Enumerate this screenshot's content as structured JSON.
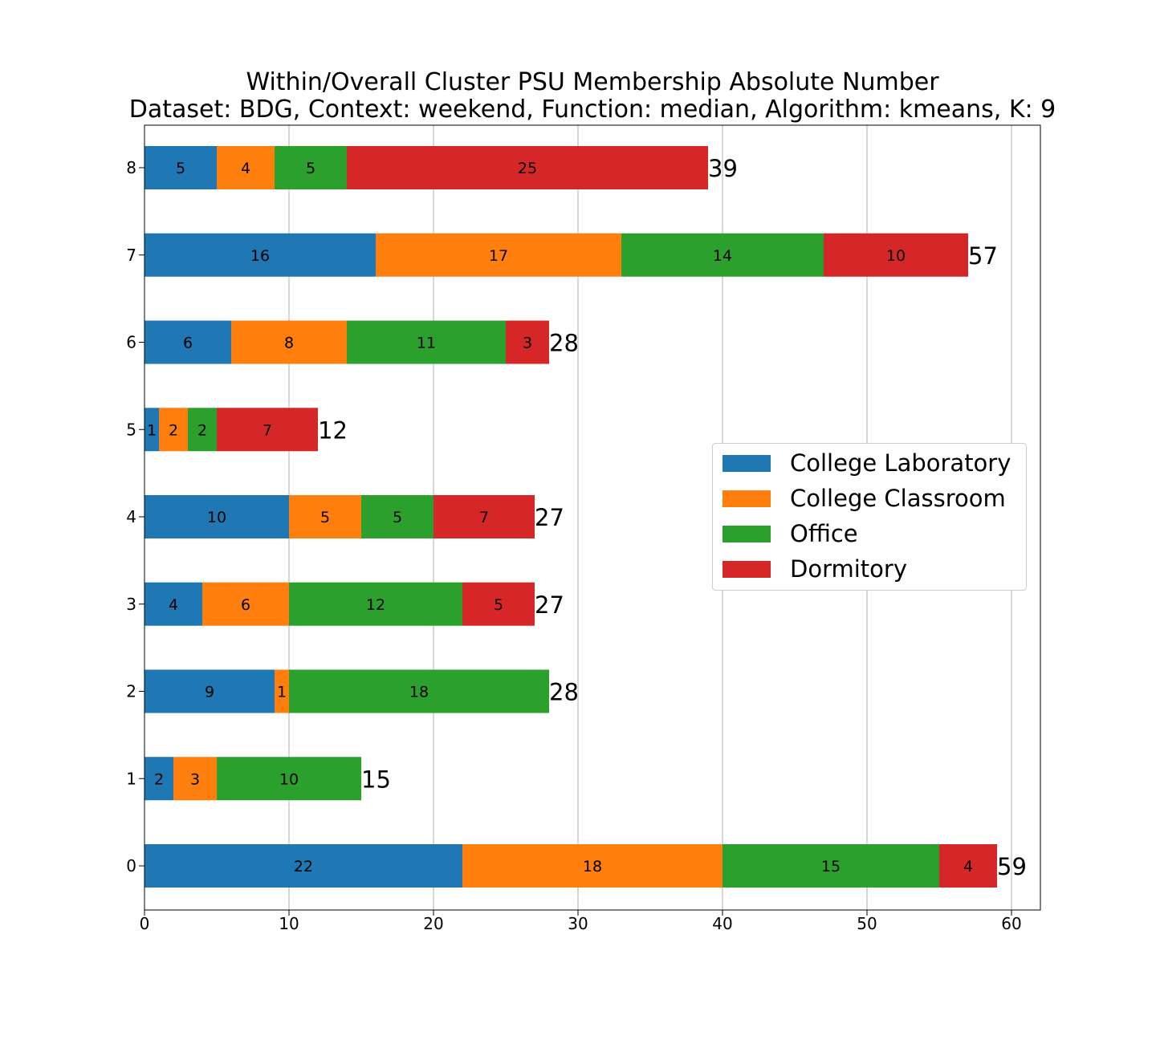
{
  "title": {
    "line1": "Within/Overall Cluster PSU Membership Absolute Number",
    "line2": "Dataset: BDG, Context: weekend, Function: median, Algorithm: kmeans, K: 9"
  },
  "chart_data": {
    "type": "bar",
    "orientation": "horizontal",
    "stacked": true,
    "categories": [
      "0",
      "1",
      "2",
      "3",
      "4",
      "5",
      "6",
      "7",
      "8"
    ],
    "series": [
      {
        "name": "College Laboratory",
        "color": "#1f77b4",
        "values": [
          22,
          2,
          9,
          4,
          10,
          1,
          6,
          16,
          5
        ]
      },
      {
        "name": "College Classroom",
        "color": "#ff7f0e",
        "values": [
          18,
          3,
          1,
          6,
          5,
          2,
          8,
          17,
          4
        ]
      },
      {
        "name": "Office",
        "color": "#2ca02c",
        "values": [
          15,
          10,
          18,
          12,
          5,
          2,
          11,
          14,
          5
        ]
      },
      {
        "name": "Dormitory",
        "color": "#d62728",
        "values": [
          4,
          0,
          0,
          5,
          7,
          7,
          3,
          10,
          25
        ]
      }
    ],
    "totals": [
      59,
      15,
      28,
      27,
      27,
      12,
      28,
      57,
      39
    ],
    "xlim": [
      0,
      62
    ],
    "xticks": [
      0,
      10,
      20,
      30,
      40,
      50,
      60
    ],
    "grid": "vertical",
    "legend_position": "center-right",
    "xlabel": "",
    "ylabel": ""
  }
}
